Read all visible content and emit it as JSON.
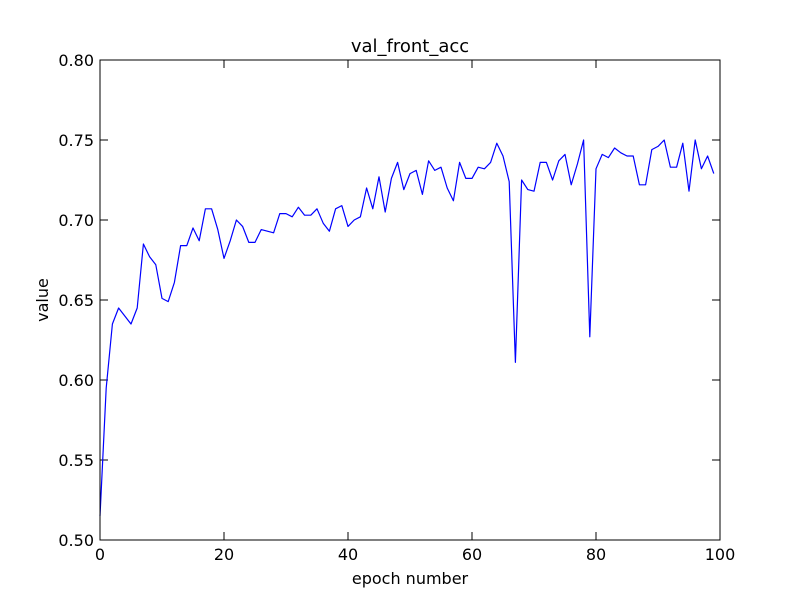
{
  "chart_data": {
    "type": "line",
    "title": "val_front_acc",
    "xlabel": "epoch number",
    "ylabel": "value",
    "xlim": [
      0,
      100
    ],
    "ylim": [
      0.5,
      0.8
    ],
    "xticks": [
      0,
      20,
      40,
      60,
      80,
      100
    ],
    "xtick_labels": [
      "0",
      "20",
      "40",
      "60",
      "80",
      "100"
    ],
    "yticks": [
      0.5,
      0.55,
      0.6,
      0.65,
      0.7,
      0.75,
      0.8
    ],
    "ytick_labels": [
      "0.50",
      "0.55",
      "0.60",
      "0.65",
      "0.70",
      "0.75",
      "0.80"
    ],
    "grid": false,
    "colors": {
      "series": "#0000ff"
    },
    "series": [
      {
        "x": [
          0,
          1,
          2,
          3,
          4,
          5,
          6,
          7,
          8,
          9,
          10,
          11,
          12,
          13,
          14,
          15,
          16,
          17,
          18,
          19,
          20,
          21,
          22,
          23,
          24,
          25,
          26,
          27,
          28,
          29,
          30,
          31,
          32,
          33,
          34,
          35,
          36,
          37,
          38,
          39,
          40,
          41,
          42,
          43,
          44,
          45,
          46,
          47,
          48,
          49,
          50,
          51,
          52,
          53,
          54,
          55,
          56,
          57,
          58,
          59,
          60,
          61,
          62,
          63,
          64,
          65,
          66,
          67,
          68,
          69,
          70,
          71,
          72,
          73,
          74,
          75,
          76,
          77,
          78,
          79,
          80,
          81,
          82,
          83,
          84,
          85,
          86,
          87,
          88,
          89,
          90,
          91,
          92,
          93,
          94,
          95,
          96,
          97,
          98,
          99
        ],
        "values": [
          0.515,
          0.595,
          0.635,
          0.645,
          0.64,
          0.635,
          0.645,
          0.685,
          0.677,
          0.672,
          0.651,
          0.649,
          0.661,
          0.684,
          0.684,
          0.695,
          0.687,
          0.707,
          0.707,
          0.694,
          0.676,
          0.687,
          0.7,
          0.696,
          0.686,
          0.686,
          0.694,
          0.693,
          0.692,
          0.704,
          0.704,
          0.702,
          0.708,
          0.703,
          0.703,
          0.707,
          0.698,
          0.693,
          0.707,
          0.709,
          0.696,
          0.7,
          0.702,
          0.72,
          0.707,
          0.727,
          0.705,
          0.726,
          0.736,
          0.719,
          0.729,
          0.731,
          0.716,
          0.737,
          0.731,
          0.733,
          0.72,
          0.712,
          0.736,
          0.726,
          0.726,
          0.733,
          0.732,
          0.736,
          0.748,
          0.74,
          0.724,
          0.611,
          0.725,
          0.719,
          0.718,
          0.736,
          0.736,
          0.725,
          0.737,
          0.741,
          0.722,
          0.735,
          0.75,
          0.627,
          0.732,
          0.741,
          0.739,
          0.745,
          0.742,
          0.74,
          0.74,
          0.722,
          0.722,
          0.744,
          0.746,
          0.75,
          0.733,
          0.733,
          0.748,
          0.718,
          0.75,
          0.732,
          0.74,
          0.729
        ]
      }
    ]
  }
}
